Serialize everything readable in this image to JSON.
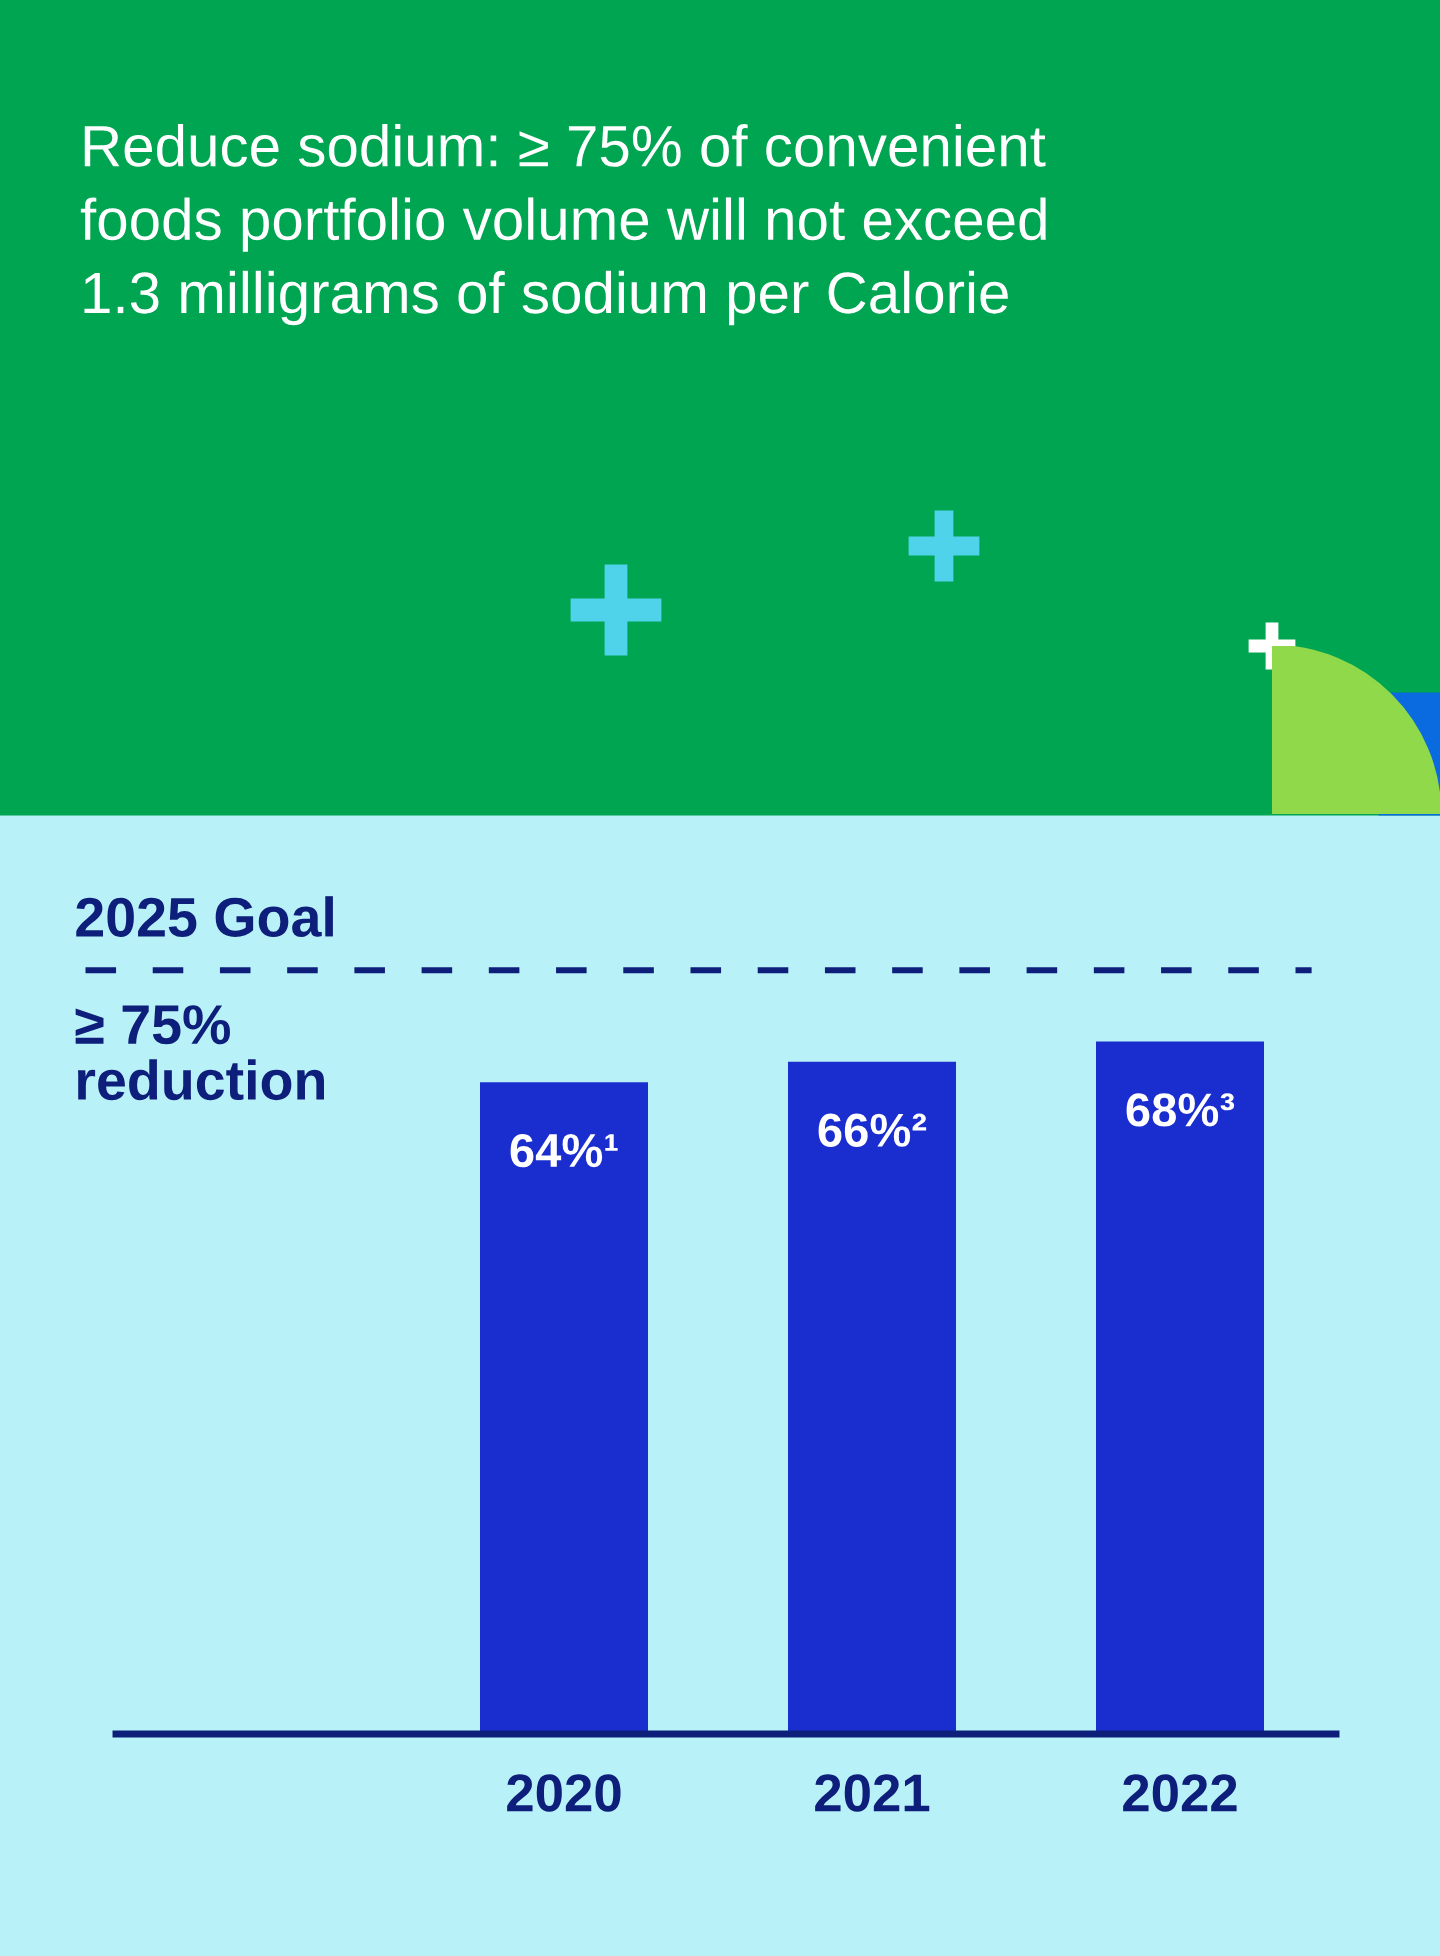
{
  "chart_data": {
    "type": "bar",
    "title": "Reduce sodium: ≥ 75% of convenient\nfoods portfolio volume will not exceed\n1.3 milligrams of sodium per Calorie",
    "categories": [
      "2020",
      "2021",
      "2022"
    ],
    "values": [
      64,
      66,
      68
    ],
    "value_labels": [
      "64%¹",
      "66%²",
      "68%³"
    ],
    "color": "#1a2ecf",
    "ref_lines": [
      {
        "axis": "y",
        "value": 75,
        "label": "2025 Goal",
        "color": "#0d1f7a",
        "line_style": "dashed"
      }
    ],
    "annotations": [
      "≥ 75%\nreduction"
    ],
    "grid": false,
    "legend": false
  }
}
